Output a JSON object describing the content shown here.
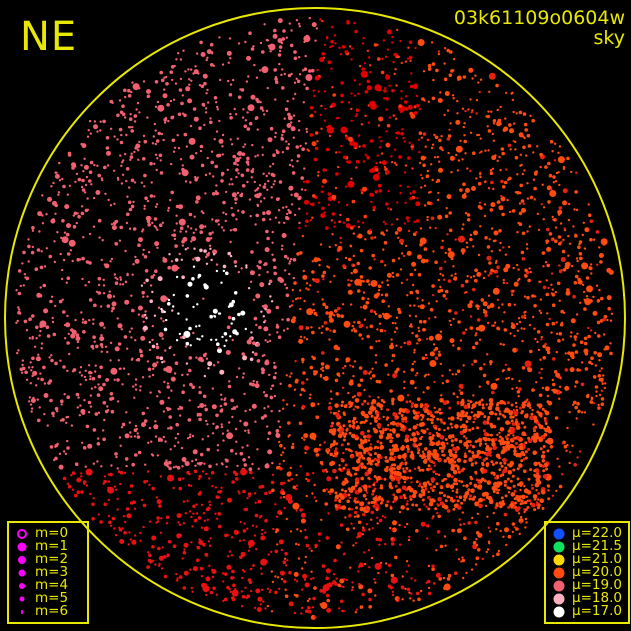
{
  "direction_label": "NE",
  "observation_id": "03k61109o0604w",
  "observation_type": "sky",
  "colors": {
    "frame": "#e8e800",
    "background": "#000000",
    "magnitude_symbol": "#ff00ff"
  },
  "magnitude_legend": [
    {
      "label": "m=0",
      "style": "ring"
    },
    {
      "label": "m=1",
      "style": "filled"
    },
    {
      "label": "m=2",
      "style": "filled"
    },
    {
      "label": "m=3",
      "style": "filled"
    },
    {
      "label": "m=4",
      "style": "filled"
    },
    {
      "label": "m=5",
      "style": "filled"
    },
    {
      "label": "m=6",
      "style": "filled"
    }
  ],
  "brightness_legend": [
    {
      "label": "μ=22.0",
      "color": "#1050ff"
    },
    {
      "label": "μ=21.5",
      "color": "#10e060"
    },
    {
      "label": "μ=21.0",
      "color": "#ffd800"
    },
    {
      "label": "μ=20.0",
      "color": "#ff4a10"
    },
    {
      "label": "μ=19.0",
      "color": "#f06070"
    },
    {
      "label": "μ=18.0",
      "color": "#ffb0c0"
    },
    {
      "label": "μ=17.0",
      "color": "#ffffff"
    }
  ]
}
